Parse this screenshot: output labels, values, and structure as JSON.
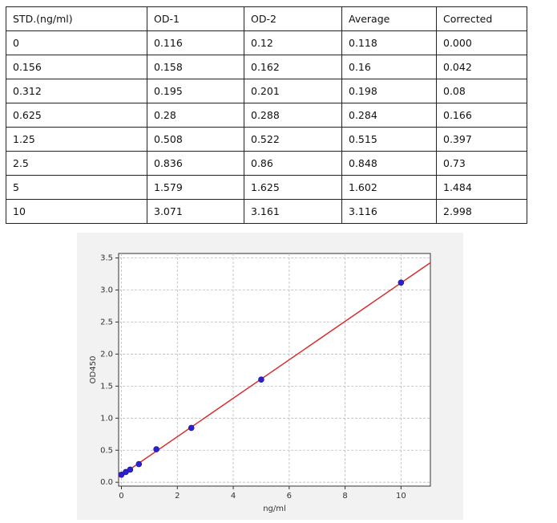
{
  "table": {
    "header": [
      "STD.(ng/ml)",
      "OD-1",
      "OD-2",
      "Average",
      "Corrected"
    ],
    "rows": [
      [
        "0",
        "0.116",
        "0.12",
        "0.118",
        "0.000"
      ],
      [
        "0.156",
        "0.158",
        "0.162",
        "0.16",
        "0.042"
      ],
      [
        "0.312",
        "0.195",
        "0.201",
        "0.198",
        "0.08"
      ],
      [
        "0.625",
        "0.28",
        "0.288",
        "0.284",
        "0.166"
      ],
      [
        "1.25",
        "0.508",
        "0.522",
        "0.515",
        "0.397"
      ],
      [
        "2.5",
        "0.836",
        "0.86",
        "0.848",
        "0.73"
      ],
      [
        "5",
        "1.579",
        "1.625",
        "1.602",
        "1.484"
      ],
      [
        "10",
        "3.071",
        "3.161",
        "3.116",
        "2.998"
      ]
    ]
  },
  "chart_data": {
    "type": "scatter",
    "x_label": "ng/ml",
    "y_label": "OD450",
    "x": [
      0,
      0.156,
      0.312,
      0.625,
      1.25,
      2.5,
      5,
      10
    ],
    "values": [
      0.118,
      0.16,
      0.198,
      0.284,
      0.515,
      0.848,
      1.602,
      3.116
    ],
    "color": "#2b1fd6",
    "fit_color": "#d62f2f",
    "xlim": [
      -0.1,
      11.05
    ],
    "ylim": [
      -0.06,
      3.57
    ],
    "xticks": [
      0,
      2,
      4,
      6,
      8,
      10
    ],
    "yticks": [
      {
        "value": 0,
        "label": "0.0"
      },
      {
        "value": 0.5,
        "label": "0.5"
      },
      {
        "value": 1,
        "label": "1.0"
      },
      {
        "value": 1.5,
        "label": "1.5"
      },
      {
        "value": 2,
        "label": "2.0"
      },
      {
        "value": 2.5,
        "label": "2.5"
      },
      {
        "value": 3,
        "label": "3.0"
      },
      {
        "value": 3.5,
        "label": "3.5"
      }
    ],
    "grid": true
  }
}
